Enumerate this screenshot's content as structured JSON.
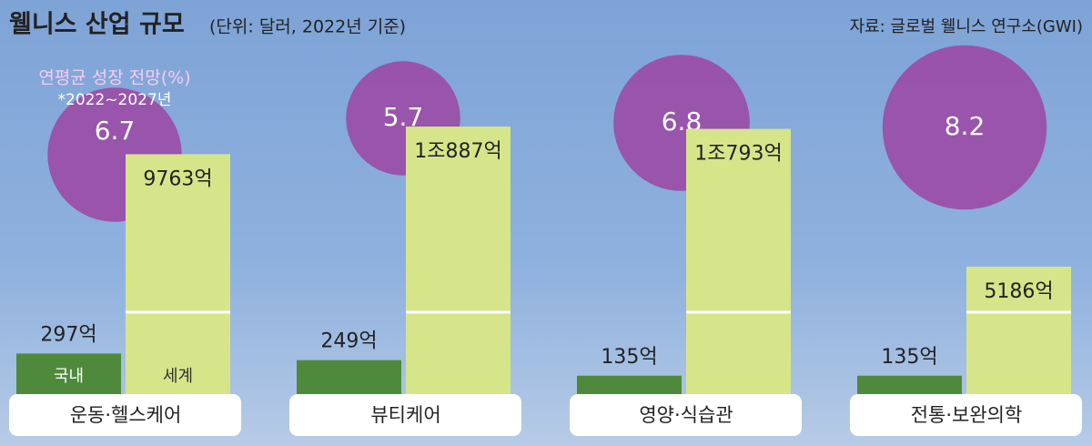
{
  "chart_data": {
    "type": "bar",
    "title": "웰니스 산업 규모",
    "subtitle": "(단위: 달러, 2022년 기준)",
    "source": "자료: 글로벌 웰니스 연구소(GWI)",
    "categories": [
      "운동·헬스케어",
      "뷰티케어",
      "영양·식습관",
      "전통·보완의학"
    ],
    "series": [
      {
        "name": "국내",
        "color": "#4f8a3c",
        "values": [
          297,
          249,
          135,
          135
        ],
        "value_labels": [
          "297억",
          "249억",
          "135억",
          "135억"
        ]
      },
      {
        "name": "세계",
        "color": "#d6e58a",
        "values": [
          9763,
          10887,
          10793,
          5186
        ],
        "value_labels": [
          "9763억",
          "1조887억",
          "1조793억",
          "5186억"
        ]
      }
    ],
    "growth": {
      "name": "연평균 성장 전망(%)",
      "note": "*2022~2027년",
      "color": "#9b4aa6",
      "values": [
        6.7,
        5.7,
        6.8,
        8.2
      ]
    }
  }
}
